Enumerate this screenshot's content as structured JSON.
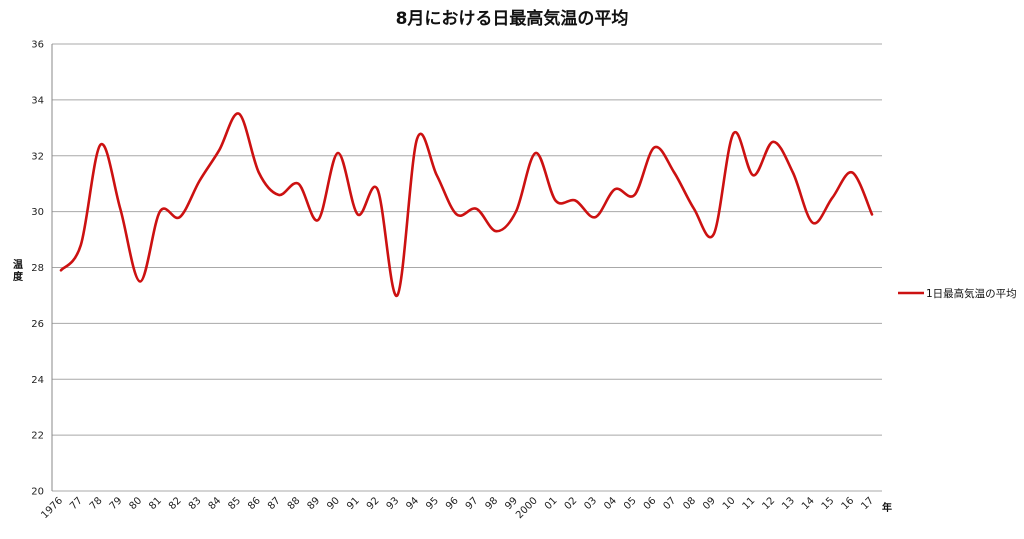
{
  "chart_data": {
    "type": "line",
    "title": "8月における日最高気温の平均",
    "xlabel": "年",
    "ylabel": "温度",
    "ylim": [
      20,
      36
    ],
    "yticks": [
      "20",
      "22",
      "24",
      "26",
      "28",
      "30",
      "32",
      "34",
      "36"
    ],
    "grid": true,
    "legend_position": "right",
    "categories": [
      "1976",
      "77",
      "78",
      "79",
      "80",
      "81",
      "82",
      "83",
      "84",
      "85",
      "86",
      "87",
      "88",
      "89",
      "90",
      "91",
      "92",
      "93",
      "94",
      "95",
      "96",
      "97",
      "98",
      "99",
      "2000",
      "01",
      "02",
      "03",
      "04",
      "05",
      "06",
      "07",
      "08",
      "09",
      "10",
      "11",
      "12",
      "13",
      "14",
      "15",
      "16",
      "17"
    ],
    "series": [
      {
        "name": "1日最高気温の平均",
        "color": "#cc1111",
        "values": [
          27.9,
          28.8,
          32.4,
          30.1,
          27.5,
          30.0,
          29.8,
          31.1,
          32.2,
          33.5,
          31.4,
          30.6,
          31.0,
          29.7,
          32.1,
          29.9,
          30.8,
          27.0,
          32.6,
          31.3,
          29.9,
          30.1,
          29.3,
          30.0,
          32.1,
          30.4,
          30.4,
          29.8,
          30.8,
          30.6,
          32.3,
          31.4,
          30.1,
          29.2,
          32.8,
          31.3,
          32.5,
          31.4,
          29.6,
          30.5,
          31.4,
          29.9
        ]
      }
    ]
  }
}
